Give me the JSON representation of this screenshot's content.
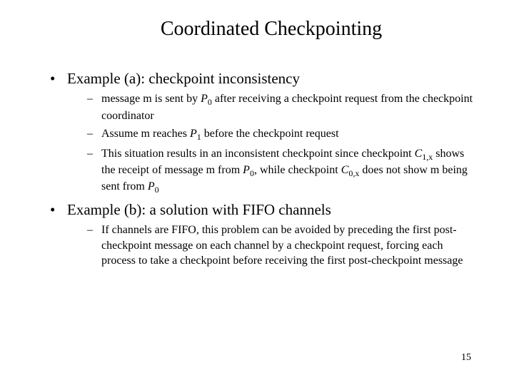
{
  "title": "Coordinated Checkpointing",
  "bullets": [
    {
      "label_pre": "Example (a)",
      "label_post": ": checkpoint inconsistency",
      "subs": [
        {
          "t1": "message m is sent by ",
          "sym1": "P",
          "sub1": "0",
          "t2": " after receiving a checkpoint request from the checkpoint coordinator"
        },
        {
          "t1": "Assume m reaches ",
          "sym1": "P",
          "sub1": "1",
          "t2": "  before the checkpoint request"
        },
        {
          "t1": "This situation results in an inconsistent checkpoint since checkpoint ",
          "sym1": "C",
          "sub1": "1,x",
          "t2": " shows the receipt of message m from ",
          "sym2": "P",
          "sub2": "0",
          "t3": ", while checkpoint ",
          "sym3": "C",
          "sub3": "0,x",
          "t4": " does not show m being sent from ",
          "sym4": "P",
          "sub4": "0"
        }
      ]
    },
    {
      "label_pre": "Example (b)",
      "label_post": ": a solution with FIFO channels",
      "subs": [
        {
          "t1": "If channels are FIFO, this problem can be avoided by preceding the first post-checkpoint message on each channel by a checkpoint request, forcing each process to take a checkpoint before receiving the first post-checkpoint message"
        }
      ]
    }
  ],
  "pageNumber": "15",
  "colors": {
    "background": "#ffffff",
    "text": "#000000"
  },
  "fonts": {
    "title_size": 28,
    "bullet_size": 21,
    "sub_size": 16,
    "page_size": 14,
    "family": "Times New Roman"
  }
}
